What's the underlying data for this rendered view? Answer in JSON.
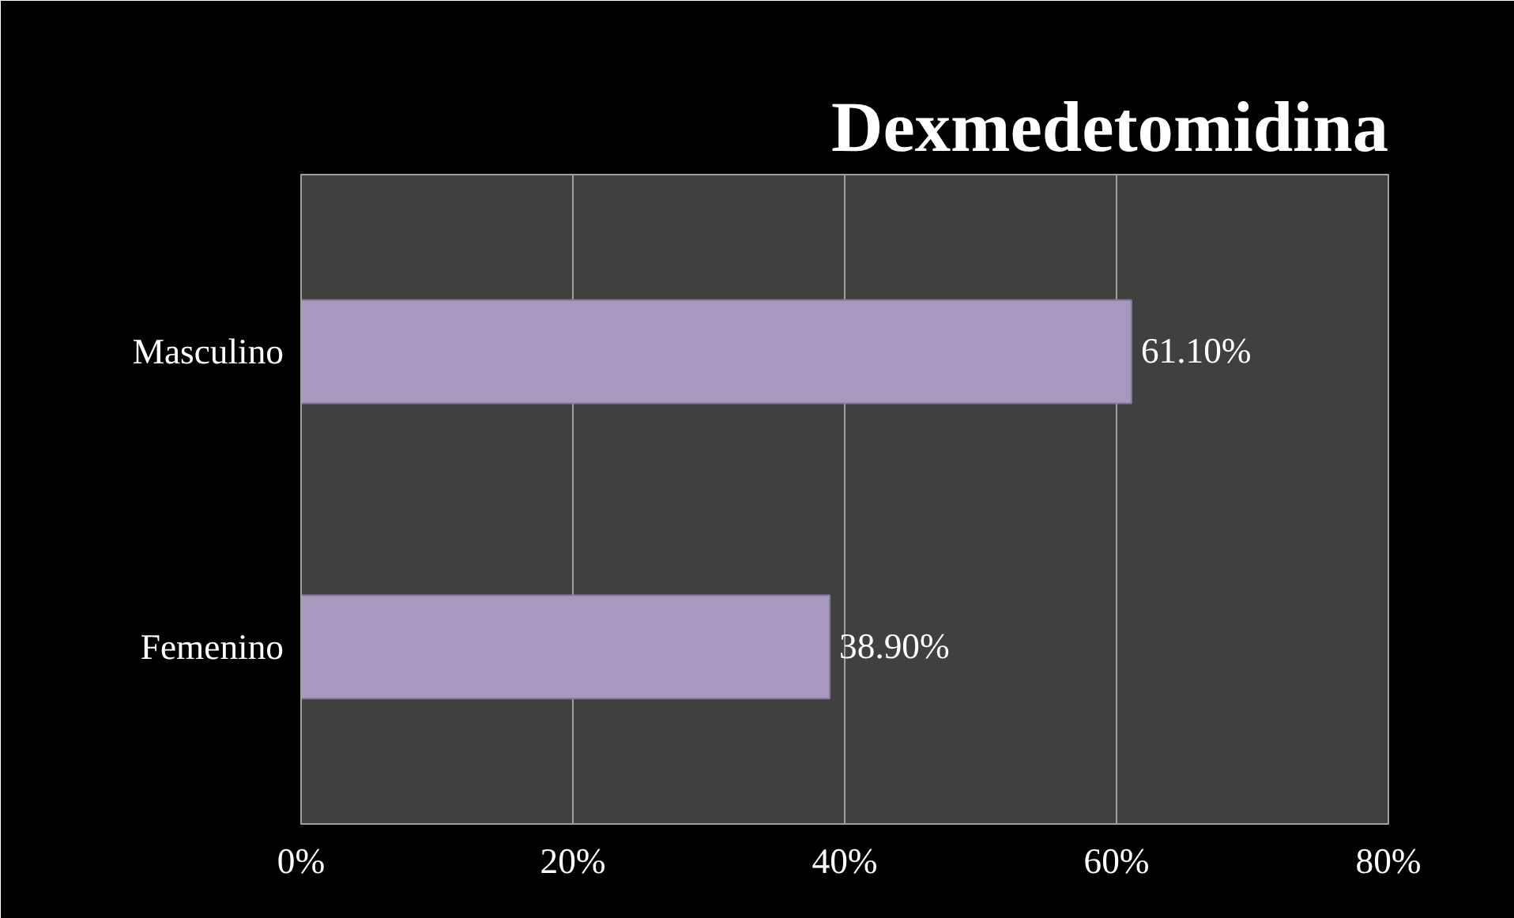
{
  "chart_data": {
    "type": "bar",
    "orientation": "horizontal",
    "title": "Dexmedetomidina",
    "categories": [
      "Masculino",
      "Femenino"
    ],
    "values": [
      61.1,
      38.9
    ],
    "color": "#a898c0",
    "value_labels": [
      "61.10%",
      "38.90%"
    ],
    "xlim": [
      0,
      80
    ],
    "xticks": [
      {
        "value": 0,
        "label": "0%"
      },
      {
        "value": 20,
        "label": "20%"
      },
      {
        "value": 40,
        "label": "40%"
      },
      {
        "value": 60,
        "label": "60%"
      },
      {
        "value": 80,
        "label": "80%"
      }
    ],
    "grid": "x"
  }
}
